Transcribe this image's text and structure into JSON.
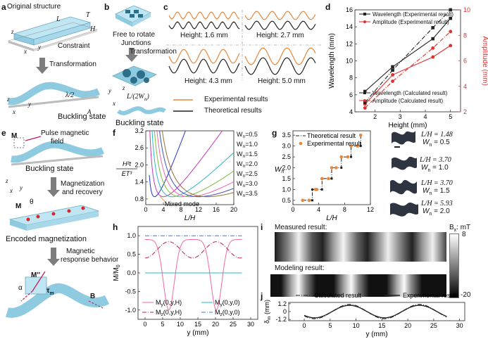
{
  "panel_labels": {
    "a": "a",
    "b": "b",
    "c": "c",
    "d": "d",
    "e": "e",
    "f": "f",
    "g": "g",
    "h": "h",
    "i": "i",
    "j": "j"
  },
  "panel_a": {
    "original_structure": "Original structure",
    "dim_L": "L",
    "dim_T": "T",
    "dim_H": "H",
    "constraint": "Constraint",
    "axis_z": "z",
    "axis_y": "y",
    "axis_x": "x",
    "transformation": "Transformation",
    "lambda_half": "λ/2",
    "amp_A": "A",
    "buckling_state": "Buckling state"
  },
  "panel_b": {
    "free_rotate": "Free to rotate",
    "junctions": "Junctions",
    "transformation": "Transformation",
    "formula": "L/(2W",
    "formula_sub": "n",
    "formula_end": ")",
    "buckling_state": "Buckling state"
  },
  "panel_c": {
    "heights": [
      "Height: 1.6 mm",
      "Height: 2.7 mm",
      "Height: 4.3 mm",
      "Height: 5.0 mm"
    ],
    "legend_exp": "Experimental results",
    "legend_theo": "Theoretical results",
    "exp_color": "#e8873a",
    "theo_color": "#222222"
  },
  "panel_e": {
    "M_label": "M",
    "pulse": "Pulse magnetic",
    "field": "field",
    "buckling_state": "Buckling state",
    "magnetization": "Magnetization",
    "and_recovery": "and recovery",
    "M2": "M",
    "theta": "θ",
    "encoded": "Encoded magnetization",
    "magnetic": "Magnetic",
    "response": "response behavior",
    "Mpp": "M''",
    "alpha": "α",
    "tau": "τ",
    "tau_sub": "m",
    "B": "B",
    "axis_z": "z",
    "axis_y": "y",
    "axis_x": "x"
  },
  "panel_i": {
    "measured": "Measured result:",
    "modeling": "Modeling result:",
    "cbar_title": "B",
    "cbar_sub": "x",
    "cbar_unit": ": mT",
    "cbar_max": "8",
    "cbar_min": "-20"
  },
  "panel_g_images": {
    "items": [
      {
        "ratio": "L/H = 1.48",
        "wn": "W",
        "wn_sub": "n",
        "wn_val": " = 0.5"
      },
      {
        "ratio": "L/H = 3.70",
        "wn": "W",
        "wn_sub": "n",
        "wn_val": " = 1.0"
      },
      {
        "ratio": "L/H = 3.70",
        "wn": "W",
        "wn_sub": "n",
        "wn_val": " = 1.5"
      },
      {
        "ratio": "L/H = 5.93",
        "wn": "W",
        "wn_sub": "n",
        "wn_val": " = 2.0"
      }
    ]
  },
  "chart_data": [
    {
      "id": "d",
      "type": "line",
      "xlabel": "Height (mm)",
      "ylabel": "Wavelength (mm)",
      "y2label": "Amplitude (mm)",
      "x": [
        1.6,
        2.7,
        4.3,
        5.0
      ],
      "xlim": [
        1.2,
        5.4
      ],
      "ylim": [
        4,
        16
      ],
      "y2lim": [
        2,
        10
      ],
      "xticks": [
        2,
        3,
        4,
        5
      ],
      "yticks": [
        4,
        6,
        8,
        10,
        12,
        14,
        16
      ],
      "y2ticks": [
        2,
        4,
        6,
        8,
        10
      ],
      "series": [
        {
          "name": "Wavelength (Experimental result)",
          "axis": "left",
          "color": "#222222",
          "style": "solid-square",
          "values": [
            6.4,
            9.3,
            12.6,
            15.0
          ]
        },
        {
          "name": "Amplitude (Experimental result)",
          "axis": "right",
          "color": "#e03030",
          "style": "solid-circle",
          "values": [
            2.6,
            4.9,
            6.3,
            7.2
          ]
        },
        {
          "name": "Wavelength (Calculated result)",
          "axis": "left",
          "color": "#222222",
          "style": "dashdot-square",
          "values": [
            5.1,
            8.9,
            13.9,
            16.0
          ]
        },
        {
          "name": "Amplitude (Calculated result)",
          "axis": "right",
          "color": "#e03030",
          "style": "dashdot-circle",
          "values": [
            2.3,
            4.4,
            7.0,
            8.3
          ]
        }
      ]
    },
    {
      "id": "f",
      "type": "line",
      "xlabel": "L/H",
      "ylabel_num": "H²t",
      "ylabel_den": "ET³",
      "xlim": [
        0,
        20
      ],
      "ylim": [
        0.6,
        3.2
      ],
      "xticks": [
        0,
        4,
        8,
        12,
        16,
        20
      ],
      "yticks": [
        0.8,
        1.4,
        2.0,
        2.6,
        3.2
      ],
      "annotation": "Mixed mode",
      "series": [
        {
          "name": "Wn=0.5",
          "color": "#2233cc",
          "min_x": 2.0
        },
        {
          "name": "Wn=1.0",
          "color": "#c23ab8",
          "min_x": 4.0
        },
        {
          "name": "Wn=1.5",
          "color": "#29b8c9",
          "min_x": 6.0
        },
        {
          "name": "Wn=2.0",
          "color": "#7bbf3a",
          "min_x": 8.0
        },
        {
          "name": "Wn=2.5",
          "color": "#ef6aa8",
          "min_x": 10.0
        },
        {
          "name": "Wn=3.0",
          "color": "#3e4fb5",
          "min_x": 12.0
        },
        {
          "name": "Wn=3.5",
          "color": "#9b6d3a",
          "min_x": 14.0
        }
      ],
      "legend": [
        "Wn=0.5",
        "Wn=1.0",
        "Wn=1.5",
        "Wn=2.0",
        "Wn=2.5",
        "Wn=3.0",
        "Wn=3.5"
      ],
      "legend_prefix": "W",
      "legend_sub": "n",
      "legend_vals": [
        "=0.5",
        "=1.0",
        "=1.5",
        "=2.0",
        "=2.5",
        "=3.0",
        "=3.5"
      ]
    },
    {
      "id": "g",
      "type": "line",
      "xlabel": "L/H",
      "ylabel": "W",
      "ylabel_sub": "n",
      "xlim": [
        0,
        12
      ],
      "ylim": [
        0.3,
        3.7
      ],
      "xticks": [
        0,
        4,
        8,
        12
      ],
      "yticks": [
        0.5,
        1.0,
        1.5,
        2.0,
        2.5,
        3.0,
        3.5
      ],
      "series": [
        {
          "name": "Theoretical result",
          "color": "#222222",
          "x": [
            1.5,
            3.0,
            3.0,
            4.5,
            4.5,
            6.0,
            6.0,
            7.5,
            7.5,
            9.0,
            9.0,
            10.5,
            10.5,
            10.5
          ],
          "y": [
            0.5,
            0.5,
            1.0,
            1.0,
            1.5,
            1.5,
            2.0,
            2.0,
            2.5,
            2.5,
            3.0,
            3.0,
            3.5,
            3.5
          ]
        },
        {
          "name": "Experimental result",
          "color": "#e8873a",
          "x": [
            1.5,
            2.5,
            3.5,
            3.7,
            4.5,
            5.5,
            6.0,
            6.7,
            7.5,
            8.5,
            9.0,
            10.0,
            10.5
          ],
          "y": [
            0.5,
            0.5,
            1.0,
            1.0,
            1.5,
            1.5,
            2.0,
            2.0,
            2.5,
            2.5,
            3.0,
            3.0,
            3.5
          ]
        }
      ]
    },
    {
      "id": "h",
      "type": "line",
      "xlabel": "y (mm)",
      "ylabel": "M/M",
      "ylabel_sub": "0",
      "xlim": [
        -2,
        32
      ],
      "ylim": [
        -1.25,
        1.25
      ],
      "xticks": [
        0,
        5,
        10,
        15,
        20,
        25,
        30
      ],
      "yticks": [
        -1.0,
        -0.5,
        0.0,
        0.5,
        1.0
      ],
      "series": [
        {
          "name": "My(0,y,H)",
          "color": "#ef6aa8",
          "style": "solid"
        },
        {
          "name": "Mz(0,y,H)",
          "color": "#c2185b",
          "style": "dashdot"
        },
        {
          "name": "My(0,y,0)",
          "color": "#29b8c9",
          "style": "solid"
        },
        {
          "name": "Mz(0,y,0)",
          "color": "#3e78d8",
          "style": "dashdot"
        }
      ],
      "legend": [
        {
          "M": "M",
          "sub": "y",
          "arg": "(0,y,H)"
        },
        {
          "M": "M",
          "sub": "y",
          "arg": "(0,y,0)"
        },
        {
          "M": "M",
          "sub": "z",
          "arg": "(0,y,H)"
        },
        {
          "M": "M",
          "sub": "z",
          "arg": "(0,y,0)"
        }
      ]
    },
    {
      "id": "j",
      "type": "line",
      "xlabel": "y (mm)",
      "ylabel": "δ",
      "ylabel_sub": "m",
      "ylabel_unit": "(mm)",
      "xlim": [
        -3,
        31
      ],
      "ylim": [
        -1.4,
        1.4
      ],
      "xticks": [
        0,
        5,
        10,
        15,
        20,
        25,
        30
      ],
      "yticks": [
        -1.2,
        0,
        1.2
      ],
      "series": [
        {
          "name": "Calculated result",
          "color": "#222222",
          "style": "dashdot"
        },
        {
          "name": "Experimental result",
          "color": "#222222",
          "style": "solid"
        }
      ]
    }
  ]
}
